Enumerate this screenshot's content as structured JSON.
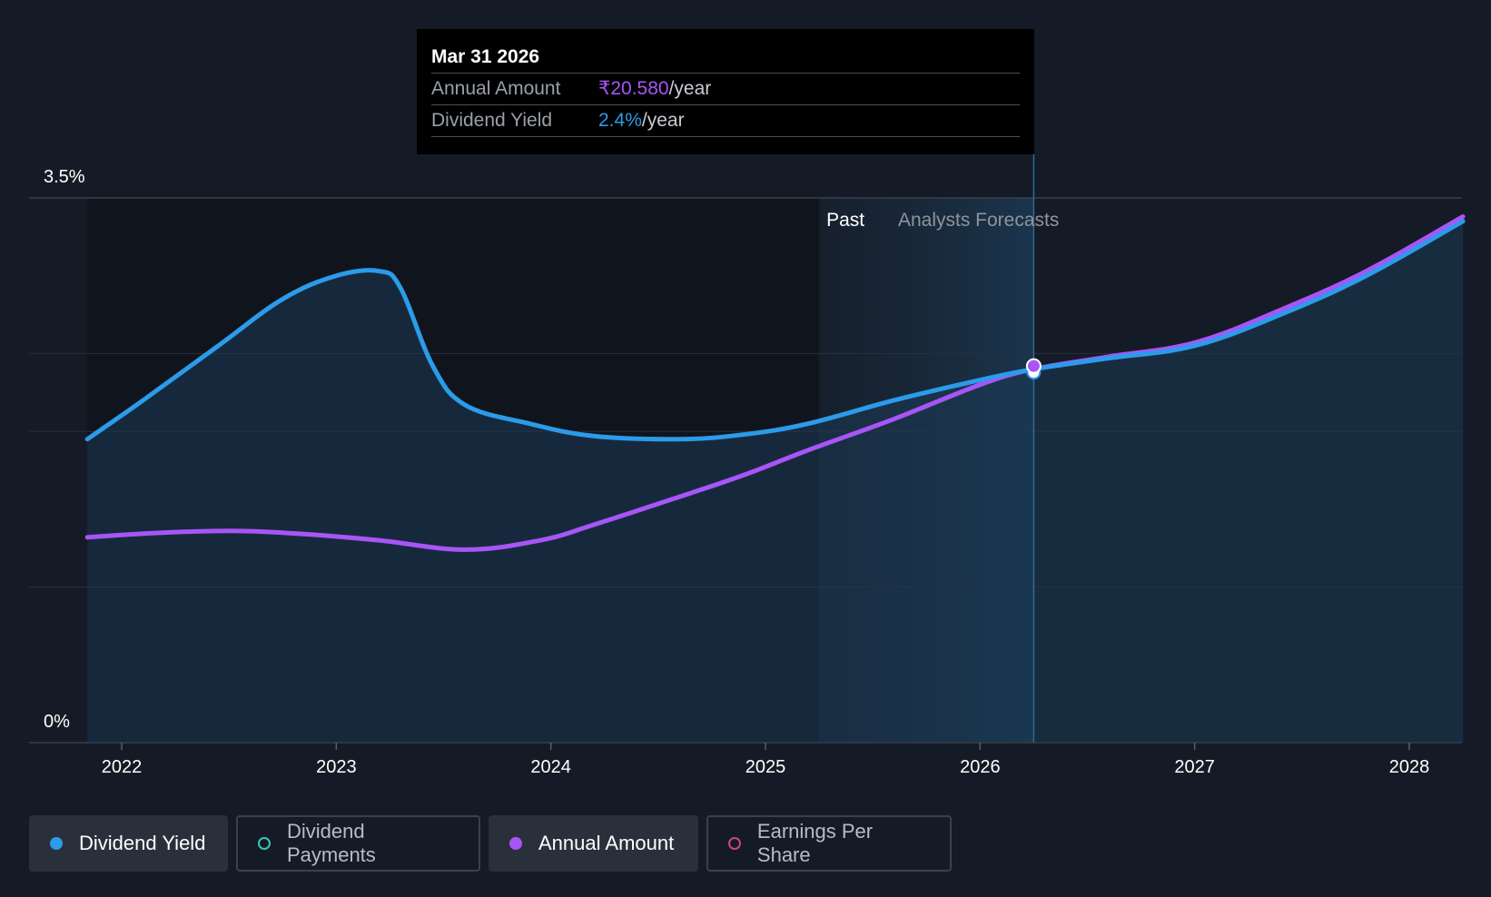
{
  "tooltip": {
    "date": "Mar 31 2026",
    "rows": [
      {
        "label": "Annual Amount",
        "value": "₹20.580",
        "unit": "/year",
        "color": "#a855f7"
      },
      {
        "label": "Dividend Yield",
        "value": "2.4%",
        "unit": "/year",
        "color": "#2b9bea"
      }
    ]
  },
  "chart_data": {
    "type": "line",
    "x_ticks": [
      "2022",
      "2023",
      "2024",
      "2025",
      "2026",
      "2027",
      "2028"
    ],
    "y_ticks": [
      "3.5%",
      "0%"
    ],
    "ylim": [
      0,
      3.5
    ],
    "past_label": "Past",
    "forecast_label": "Analysts Forecasts",
    "series": [
      {
        "name": "Dividend Yield",
        "color": "#2b9bea",
        "points": [
          [
            2021.84,
            1.95
          ],
          [
            2022.1,
            2.2
          ],
          [
            2022.45,
            2.55
          ],
          [
            2022.75,
            2.85
          ],
          [
            2023.0,
            3.0
          ],
          [
            2023.2,
            3.03
          ],
          [
            2023.3,
            2.92
          ],
          [
            2023.45,
            2.42
          ],
          [
            2023.6,
            2.17
          ],
          [
            2023.9,
            2.05
          ],
          [
            2024.2,
            1.97
          ],
          [
            2024.6,
            1.95
          ],
          [
            2024.9,
            1.98
          ],
          [
            2025.2,
            2.05
          ],
          [
            2025.6,
            2.2
          ],
          [
            2026.0,
            2.33
          ],
          [
            2026.25,
            2.4
          ],
          [
            2026.6,
            2.47
          ],
          [
            2027.0,
            2.55
          ],
          [
            2027.4,
            2.75
          ],
          [
            2027.8,
            3.0
          ],
          [
            2028.25,
            3.35
          ]
        ]
      },
      {
        "name": "Annual Amount",
        "color": "#a855f7",
        "points": [
          [
            2021.84,
            1.32
          ],
          [
            2022.2,
            1.35
          ],
          [
            2022.55,
            1.36
          ],
          [
            2022.85,
            1.34
          ],
          [
            2023.2,
            1.3
          ],
          [
            2023.6,
            1.24
          ],
          [
            2023.95,
            1.3
          ],
          [
            2024.2,
            1.4
          ],
          [
            2024.6,
            1.58
          ],
          [
            2024.9,
            1.72
          ],
          [
            2025.2,
            1.88
          ],
          [
            2025.6,
            2.08
          ],
          [
            2026.0,
            2.3
          ],
          [
            2026.25,
            2.4
          ],
          [
            2026.6,
            2.48
          ],
          [
            2027.0,
            2.57
          ],
          [
            2027.4,
            2.78
          ],
          [
            2027.8,
            3.03
          ],
          [
            2028.25,
            3.38
          ]
        ]
      }
    ],
    "highlight": {
      "x": 2026.25,
      "label": "Mar 31 2026"
    }
  },
  "legend": [
    {
      "label": "Dividend Yield",
      "color": "#2b9bea",
      "active": true,
      "filled": true
    },
    {
      "label": "Dividend Payments",
      "color": "#38c7b3",
      "active": false,
      "filled": false
    },
    {
      "label": "Annual Amount",
      "color": "#a855f7",
      "active": true,
      "filled": true
    },
    {
      "label": "Earnings Per Share",
      "color": "#d0457a",
      "active": false,
      "filled": false
    }
  ]
}
